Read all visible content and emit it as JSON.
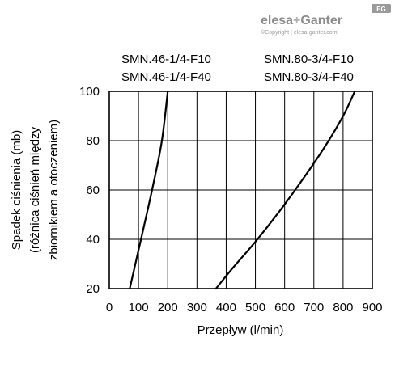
{
  "logo": {
    "brand_left": "elesa",
    "brand_plus": "+",
    "brand_right": "Ganter",
    "badge": "EG",
    "copyright": "©Copyright | elesa-ganter.com",
    "color": "#9a9a9a"
  },
  "chart_data": {
    "type": "line",
    "title": "",
    "xlabel": "Przepływ (l/min)",
    "ylabel_lines": [
      "Spadek ciśnienia (mb)",
      "(różnica ciśnień między",
      "zbiornikiem a otoczeniem)"
    ],
    "xlim": [
      0,
      900
    ],
    "ylim": [
      20,
      100
    ],
    "xticks": [
      0,
      100,
      200,
      300,
      400,
      500,
      600,
      700,
      800,
      900
    ],
    "yticks": [
      20,
      40,
      60,
      80,
      100
    ],
    "grid": true,
    "line_color": "#000000",
    "series": [
      {
        "label_lines": [
          "SMN.46-1/4-F10",
          "SMN.46-1/4-F40"
        ],
        "x": [
          70,
          95,
          120,
          150,
          180,
          200
        ],
        "y": [
          20,
          33,
          46,
          62,
          80,
          100
        ]
      },
      {
        "label_lines": [
          "SMN.80-3/4-F10",
          "SMN.80-3/4-F40"
        ],
        "x": [
          365,
          420,
          500,
          580,
          660,
          740,
          800,
          840
        ],
        "y": [
          20,
          28,
          39,
          51,
          64,
          78,
          90,
          100
        ]
      }
    ]
  }
}
